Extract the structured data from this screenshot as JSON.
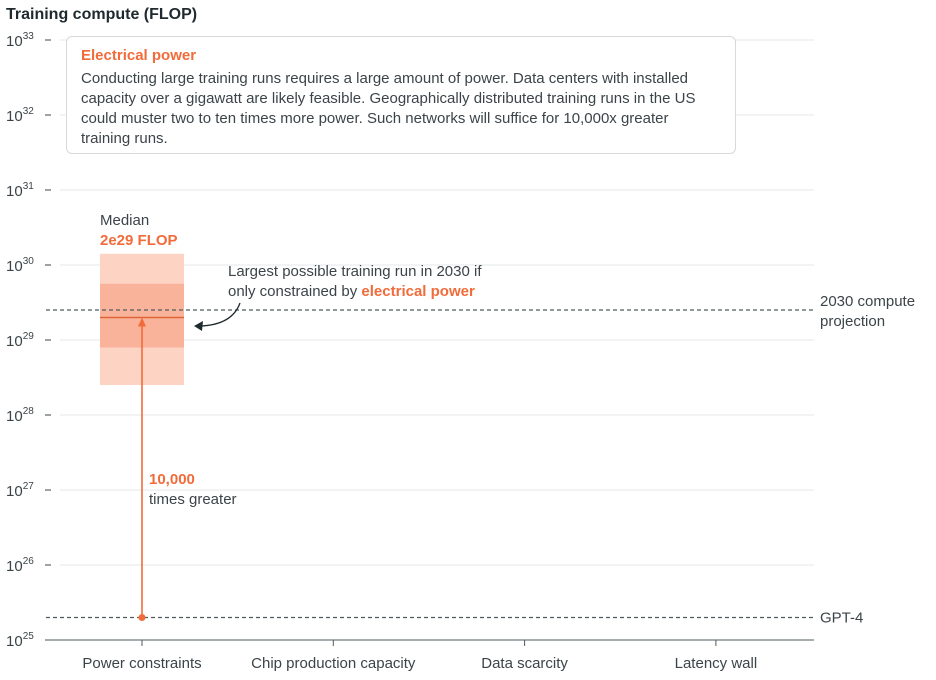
{
  "callout": {
    "title": "Electrical power",
    "body": "Conducting large training runs requires a large amount of power. Data centers with installed capacity over a gigawatt are likely feasible. Geographically distributed training runs in the US could muster two to ten times more power. Such networks will suffice for 10,000x greater training runs."
  },
  "colors": {
    "accent": "#f26b3a",
    "band_light": "#fdd3c4",
    "band_mid": "#f9b39a",
    "band_dark": "#f3926f",
    "grid": "#e4e7e8",
    "text": "#3b4448"
  },
  "chart_data": {
    "type": "range",
    "ylabel": "Training compute (FLOP)",
    "y_scale": "log10",
    "ylim_exponent": [
      25,
      33
    ],
    "ytick_exponents": [
      25,
      26,
      27,
      28,
      29,
      30,
      31,
      32,
      33
    ],
    "ytick_base": "10",
    "categories": [
      "Power constraints",
      "Chip production capacity",
      "Data scarcity",
      "Latency wall"
    ],
    "power_constraints_estimate": {
      "category": "Power constraints",
      "median_exponent": 29.3,
      "inner_range_exponent": [
        28.9,
        29.75
      ],
      "outer_range_exponent": [
        28.4,
        30.15
      ],
      "median_label": "Median",
      "median_value_label": "2e29 FLOP"
    },
    "reference_lines": [
      {
        "name": "2030 compute projection",
        "label_line1": "2030 compute",
        "label_line2": "projection",
        "exponent": 29.4
      },
      {
        "name": "GPT-4",
        "label_line1": "GPT-4",
        "exponent": 25.3
      }
    ],
    "arrow_annotation": {
      "value_label": "10,000",
      "text_label": "times greater",
      "from_exponent": 25.3,
      "to_exponent": 29.3
    },
    "curved_annotation": {
      "line1": "Largest possible training run in 2030 if",
      "line2_prefix": "only constrained by ",
      "line2_accent": "electrical power"
    }
  }
}
